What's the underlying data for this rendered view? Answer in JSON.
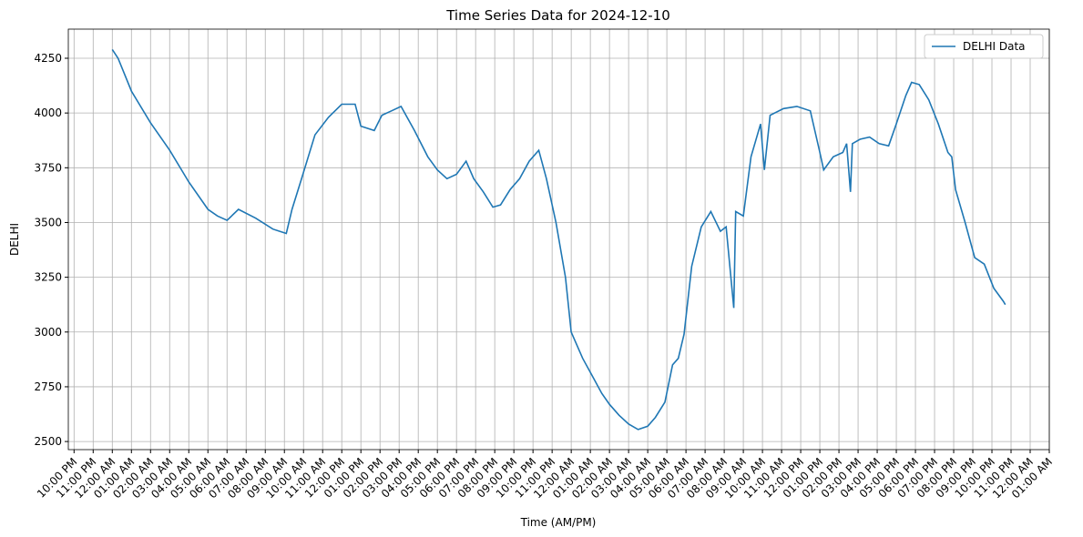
{
  "chart_data": {
    "type": "line",
    "title": "Time Series Data for 2024-12-10",
    "x_label": "Time (AM/PM)",
    "y_label": "DELHI",
    "x": [
      0,
      0.3,
      1,
      2,
      3,
      4,
      5,
      5.5,
      6,
      6.6,
      7.5,
      8.4,
      9.1,
      9.4,
      9.9,
      10.6,
      11.3,
      12,
      12.7,
      13,
      13.7,
      14.1,
      14.6,
      15.1,
      15.8,
      16.5,
      17,
      17.5,
      18,
      18.5,
      18.9,
      19.4,
      19.9,
      20.3,
      20.8,
      21.3,
      21.8,
      22.3,
      22.7,
      23.2,
      23.7,
      24,
      24.6,
      25.1,
      25.6,
      26,
      26.5,
      27,
      27.5,
      28,
      28.4,
      28.9,
      29.3,
      29.6,
      29.9,
      30.3,
      30.8,
      31.3,
      31.8,
      32.1,
      32.5,
      32.6,
      33,
      33.4,
      33.9,
      34.1,
      34.4,
      35.1,
      35.8,
      36.5,
      37,
      37.2,
      37.7,
      38.2,
      38.4,
      38.6,
      38.7,
      39.1,
      39.6,
      40.1,
      40.6,
      41,
      41.5,
      41.8,
      42.2,
      42.7,
      43.2,
      43.7,
      43.9,
      44.1,
      44.6,
      45.1,
      45.6,
      46.1,
      46.6,
      46.7
    ],
    "series": [
      {
        "name": "DELHI Data",
        "color": "#1f77b4",
        "values": [
          4290,
          4250,
          4100,
          3955,
          3830,
          3685,
          3560,
          3530,
          3510,
          3560,
          3520,
          3470,
          3450,
          3560,
          3700,
          3900,
          3980,
          4040,
          4040,
          3940,
          3920,
          3990,
          4010,
          4030,
          3920,
          3800,
          3740,
          3700,
          3720,
          3780,
          3700,
          3640,
          3570,
          3580,
          3650,
          3700,
          3780,
          3830,
          3700,
          3500,
          3250,
          3000,
          2880,
          2800,
          2720,
          2670,
          2620,
          2580,
          2555,
          2570,
          2610,
          2680,
          2850,
          2880,
          2990,
          3300,
          3480,
          3550,
          3460,
          3480,
          3110,
          3550,
          3530,
          3800,
          3950,
          3740,
          3990,
          4020,
          4030,
          4010,
          3820,
          3740,
          3800,
          3820,
          3860,
          3640,
          3860,
          3880,
          3890,
          3860,
          3850,
          3950,
          4080,
          4140,
          4130,
          4060,
          3950,
          3820,
          3800,
          3650,
          3500,
          3340,
          3310,
          3200,
          3140,
          3125
        ]
      }
    ],
    "xlim": [
      -2.3,
      49
    ],
    "ylim": [
      2463,
      4383
    ],
    "xticks": [
      {
        "value": -2,
        "label": "10:00 PM"
      },
      {
        "value": -1,
        "label": "11:00 PM"
      },
      {
        "value": 0,
        "label": "12:00 AM"
      },
      {
        "value": 1,
        "label": "01:00 AM"
      },
      {
        "value": 2,
        "label": "02:00 AM"
      },
      {
        "value": 3,
        "label": "03:00 AM"
      },
      {
        "value": 4,
        "label": "04:00 AM"
      },
      {
        "value": 5,
        "label": "05:00 AM"
      },
      {
        "value": 6,
        "label": "06:00 AM"
      },
      {
        "value": 7,
        "label": "07:00 AM"
      },
      {
        "value": 8,
        "label": "08:00 AM"
      },
      {
        "value": 9,
        "label": "09:00 AM"
      },
      {
        "value": 10,
        "label": "10:00 AM"
      },
      {
        "value": 11,
        "label": "11:00 AM"
      },
      {
        "value": 12,
        "label": "12:00 PM"
      },
      {
        "value": 13,
        "label": "01:00 PM"
      },
      {
        "value": 14,
        "label": "02:00 PM"
      },
      {
        "value": 15,
        "label": "03:00 PM"
      },
      {
        "value": 16,
        "label": "04:00 PM"
      },
      {
        "value": 17,
        "label": "05:00 PM"
      },
      {
        "value": 18,
        "label": "06:00 PM"
      },
      {
        "value": 19,
        "label": "07:00 PM"
      },
      {
        "value": 20,
        "label": "08:00 PM"
      },
      {
        "value": 21,
        "label": "09:00 PM"
      },
      {
        "value": 22,
        "label": "10:00 PM"
      },
      {
        "value": 23,
        "label": "11:00 PM"
      },
      {
        "value": 24,
        "label": "12:00 AM"
      },
      {
        "value": 25,
        "label": "01:00 AM"
      },
      {
        "value": 26,
        "label": "02:00 AM"
      },
      {
        "value": 27,
        "label": "03:00 AM"
      },
      {
        "value": 28,
        "label": "04:00 AM"
      },
      {
        "value": 29,
        "label": "05:00 AM"
      },
      {
        "value": 30,
        "label": "06:00 AM"
      },
      {
        "value": 31,
        "label": "07:00 AM"
      },
      {
        "value": 32,
        "label": "08:00 AM"
      },
      {
        "value": 33,
        "label": "09:00 AM"
      },
      {
        "value": 34,
        "label": "10:00 AM"
      },
      {
        "value": 35,
        "label": "11:00 AM"
      },
      {
        "value": 36,
        "label": "12:00 PM"
      },
      {
        "value": 37,
        "label": "01:00 PM"
      },
      {
        "value": 38,
        "label": "02:00 PM"
      },
      {
        "value": 39,
        "label": "03:00 PM"
      },
      {
        "value": 40,
        "label": "04:00 PM"
      },
      {
        "value": 41,
        "label": "05:00 PM"
      },
      {
        "value": 42,
        "label": "06:00 PM"
      },
      {
        "value": 43,
        "label": "07:00 PM"
      },
      {
        "value": 44,
        "label": "08:00 PM"
      },
      {
        "value": 45,
        "label": "09:00 PM"
      },
      {
        "value": 46,
        "label": "10:00 PM"
      },
      {
        "value": 47,
        "label": "11:00 PM"
      },
      {
        "value": 48,
        "label": "12:00 AM"
      },
      {
        "value": 49,
        "label": "01:00 AM"
      }
    ],
    "yticks": [
      2500,
      2750,
      3000,
      3250,
      3500,
      3750,
      4000,
      4250
    ],
    "grid": true,
    "legend": "upper right"
  }
}
